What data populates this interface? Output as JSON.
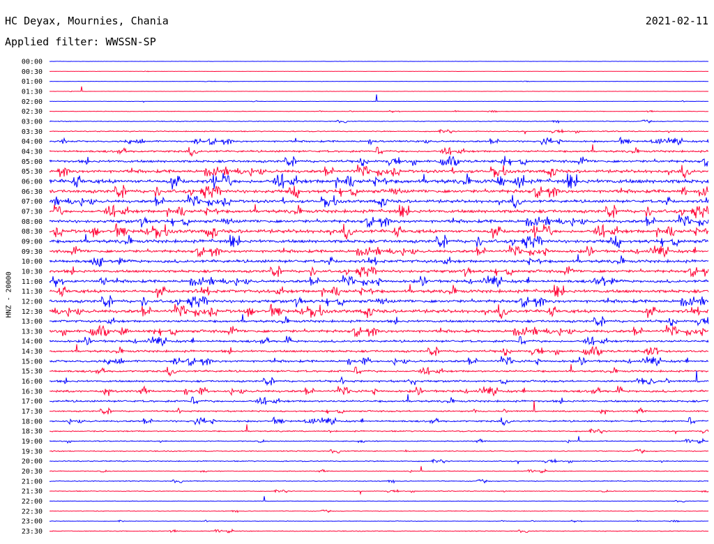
{
  "header": {
    "station": "HC Deyax, Mournies, Chania",
    "date": "2021-02-11",
    "filter": "Applied filter: WWSSN-SP"
  },
  "chart_data": {
    "type": "line",
    "title": "HC Deyax, Mournies, Chania",
    "ylabel": "HNZ - 20000",
    "colors": [
      "#0000ff",
      "#ff0033"
    ],
    "rows": [
      "00:00",
      "00:30",
      "01:00",
      "01:30",
      "02:00",
      "02:30",
      "03:00",
      "03:30",
      "04:00",
      "04:30",
      "05:00",
      "05:30",
      "06:00",
      "06:30",
      "07:00",
      "07:30",
      "08:00",
      "08:30",
      "09:00",
      "09:30",
      "10:00",
      "10:30",
      "11:00",
      "11:30",
      "12:00",
      "12:30",
      "13:00",
      "13:30",
      "14:00",
      "14:30",
      "15:00",
      "15:30",
      "16:00",
      "16:30",
      "17:00",
      "17:30",
      "18:00",
      "18:30",
      "19:00",
      "19:30",
      "20:00",
      "20:30",
      "21:00",
      "21:30",
      "22:00",
      "22:30",
      "23:00",
      "23:30"
    ],
    "noise_level": [
      0.1,
      0.1,
      0.1,
      0.1,
      0.15,
      0.2,
      0.3,
      0.4,
      0.7,
      0.8,
      1.0,
      1.2,
      1.6,
      1.3,
      1.2,
      1.3,
      1.2,
      1.4,
      1.3,
      1.1,
      1.2,
      1.1,
      1.1,
      1.3,
      1.2,
      1.3,
      1.0,
      1.1,
      0.9,
      0.9,
      0.9,
      0.8,
      0.8,
      0.9,
      0.8,
      0.6,
      0.7,
      0.5,
      0.4,
      0.4,
      0.4,
      0.3,
      0.35,
      0.3,
      0.2,
      0.25,
      0.2,
      0.3
    ]
  }
}
